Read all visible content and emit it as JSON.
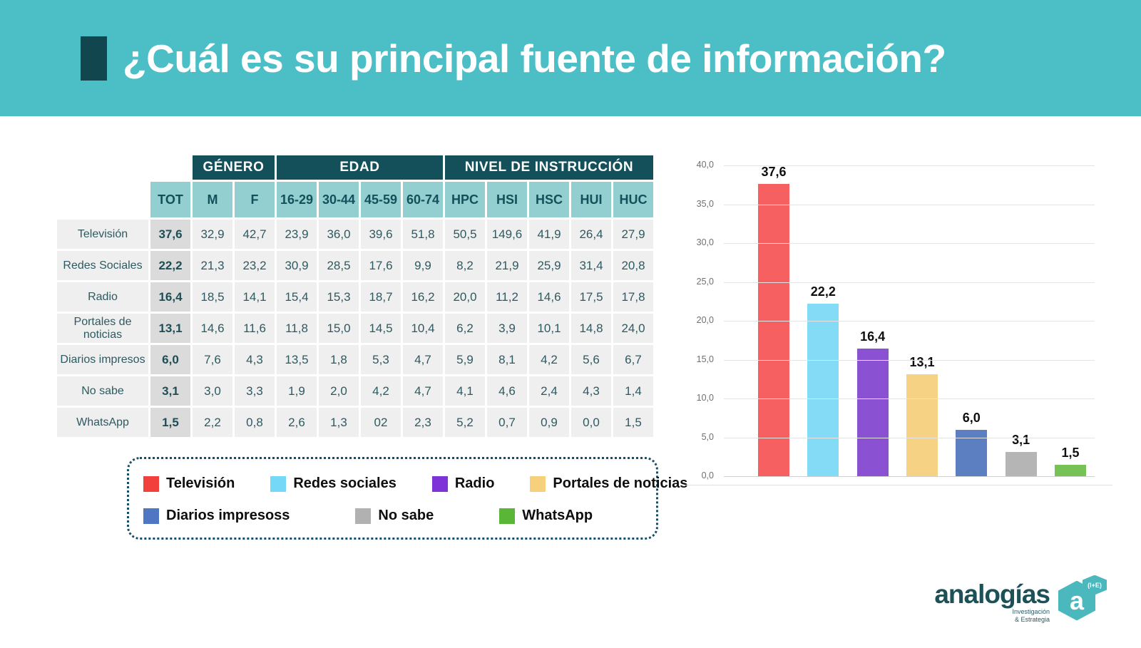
{
  "header": {
    "title": "¿Cuál es su principal fuente de información?",
    "banner_color": "#4CBEC6",
    "marker_color": "#12464F"
  },
  "table": {
    "group_headers": [
      {
        "label": "GÉNERO",
        "span": 2
      },
      {
        "label": "EDAD",
        "span": 4
      },
      {
        "label": "NIVEL DE INSTRUCCIÓN",
        "span": 5
      }
    ],
    "columns": [
      "TOT",
      "M",
      "F",
      "16-29",
      "30-44",
      "45-59",
      "60-74",
      "HPC",
      "HSI",
      "HSC",
      "HUI",
      "HUC"
    ],
    "rows": [
      {
        "label": "Televisión",
        "values": [
          "37,6",
          "32,9",
          "42,7",
          "23,9",
          "36,0",
          "39,6",
          "51,8",
          "50,5",
          "149,6",
          "41,9",
          "26,4",
          "27,9"
        ]
      },
      {
        "label": "Redes Sociales",
        "values": [
          "22,2",
          "21,3",
          "23,2",
          "30,9",
          "28,5",
          "17,6",
          "9,9",
          "8,2",
          "21,9",
          "25,9",
          "31,4",
          "20,8"
        ]
      },
      {
        "label": "Radio",
        "values": [
          "16,4",
          "18,5",
          "14,1",
          "15,4",
          "15,3",
          "18,7",
          "16,2",
          "20,0",
          "11,2",
          "14,6",
          "17,5",
          "17,8"
        ]
      },
      {
        "label": "Portales de noticias",
        "values": [
          "13,1",
          "14,6",
          "11,6",
          "11,8",
          "15,0",
          "14,5",
          "10,4",
          "6,2",
          "3,9",
          "10,1",
          "14,8",
          "24,0"
        ]
      },
      {
        "label": "Diarios impresos",
        "values": [
          "6,0",
          "7,6",
          "4,3",
          "13,5",
          "1,8",
          "5,3",
          "4,7",
          "5,9",
          "8,1",
          "4,2",
          "5,6",
          "6,7"
        ]
      },
      {
        "label": "No sabe",
        "values": [
          "3,1",
          "3,0",
          "3,3",
          "1,9",
          "2,0",
          "4,2",
          "4,7",
          "4,1",
          "4,6",
          "2,4",
          "4,3",
          "1,4"
        ]
      },
      {
        "label": "WhatsApp",
        "values": [
          "1,5",
          "2,2",
          "0,8",
          "2,6",
          "1,3",
          "02",
          "2,3",
          "5,2",
          "0,7",
          "0,9",
          "0,0",
          "1,5"
        ]
      }
    ]
  },
  "legend": {
    "border_color": "#1B4E66",
    "rows": [
      [
        {
          "label": "Televisión",
          "color": "#F2413C"
        },
        {
          "label": "Redes sociales",
          "color": "#74D8F6"
        },
        {
          "label": "Radio",
          "color": "#7E33D8"
        },
        {
          "label": "Portales de noticias",
          "color": "#F6D07B"
        }
      ],
      [
        {
          "label": "Diarios impresoss",
          "color": "#4E76C2"
        },
        {
          "label": "No sabe",
          "color": "#B1B1B1"
        },
        {
          "label": "WhatsApp",
          "color": "#5AB637"
        }
      ]
    ]
  },
  "chart_data": {
    "type": "bar",
    "title": "",
    "xlabel": "",
    "ylabel": "",
    "categories": [
      "Televisión",
      "Redes sociales",
      "Radio",
      "Portales de noticias",
      "Diarios impresoss",
      "No sabe",
      "WhatsApp"
    ],
    "values": [
      37.6,
      22.2,
      16.4,
      13.1,
      6.0,
      3.1,
      1.5
    ],
    "value_labels": [
      "37,6",
      "22,2",
      "16,4",
      "13,1",
      "6,0",
      "3,1",
      "1,5"
    ],
    "bar_colors": [
      "#F66060",
      "#83DBF5",
      "#8A52D3",
      "#F6D384",
      "#5C7FC2",
      "#B5B5B5",
      "#77C254"
    ],
    "ylim": [
      0,
      40
    ],
    "ytick_step": 5,
    "ytick_labels": [
      "0,0",
      "5,0",
      "10,0",
      "15,0",
      "20,0",
      "25,0",
      "30,0",
      "35,0",
      "40,0"
    ],
    "grid": true,
    "legend_position": "below-table"
  },
  "footer": {
    "logo_name": "analogías",
    "tagline_line1": "Investigación",
    "tagline_line2": "& Estrategia",
    "badge_letter": "a",
    "badge_super": "(I+E)"
  }
}
